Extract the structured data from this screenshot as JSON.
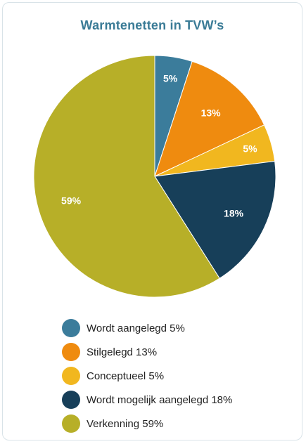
{
  "chart_data": {
    "type": "pie",
    "title": "Warmtenetten in TVW’s",
    "categories": [
      "Wordt aangelegd 5%",
      "Stilgelegd 13%",
      "Conceptueel 5%",
      "Wordt mogelijk aangelegd 18%",
      "Verkenning 59%"
    ],
    "values": [
      5,
      13,
      5,
      18,
      59
    ],
    "slice_labels": [
      "5%",
      "13%",
      "5%",
      "18%",
      "59%"
    ],
    "colors": [
      "#3b7c9b",
      "#ef8b0f",
      "#f1b71f",
      "#173f59",
      "#b7af28"
    ],
    "legend_position": "bottom"
  }
}
